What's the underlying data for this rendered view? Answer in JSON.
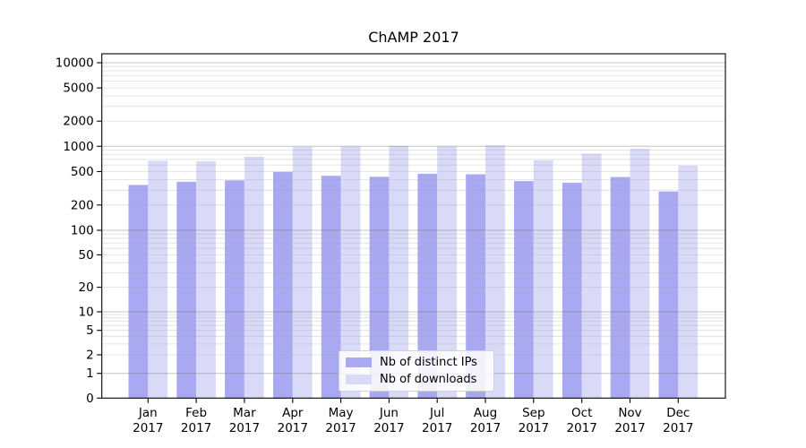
{
  "title": "ChAMP 2017",
  "chart_data": {
    "type": "bar",
    "title": "ChAMP 2017",
    "categories": [
      "Jan 2017",
      "Feb 2017",
      "Mar 2017",
      "Apr 2017",
      "May 2017",
      "Jun 2017",
      "Jul 2017",
      "Aug 2017",
      "Sep 2017",
      "Oct 2017",
      "Nov 2017",
      "Dec 2017"
    ],
    "series": [
      {
        "name": "Nb of distinct IPs",
        "color": "#a9a8f2",
        "values": [
          347,
          378,
          393,
          497,
          445,
          434,
          472,
          465,
          385,
          369,
          430,
          290
        ]
      },
      {
        "name": "Nb of downloads",
        "color": "#d9d9f8",
        "values": [
          673,
          665,
          755,
          985,
          1000,
          1015,
          1000,
          1030,
          685,
          818,
          937,
          588
        ]
      }
    ],
    "yscale": "symlog",
    "ytick_values": [
      0,
      1,
      2,
      5,
      10,
      20,
      50,
      100,
      200,
      500,
      1000,
      2000,
      5000,
      10000
    ],
    "ytick_labels": [
      "0",
      "1",
      "2",
      "5",
      "10",
      "20",
      "50",
      "100",
      "200",
      "500",
      "1000",
      "2000",
      "5000",
      "10000"
    ],
    "ylim": [
      0,
      12600
    ],
    "xlabel": "",
    "ylabel": "",
    "grid": true,
    "legend_position": "lower center"
  },
  "colors": {
    "bar_ips": "#a9a8f2",
    "bar_downloads": "#d9d9f8",
    "grid_minor": "rgba(165,165,165,0.38)",
    "grid_major": "rgba(115,115,115,0.42)",
    "axis": "#000000",
    "text": "#000000",
    "background": "#ffffff"
  }
}
